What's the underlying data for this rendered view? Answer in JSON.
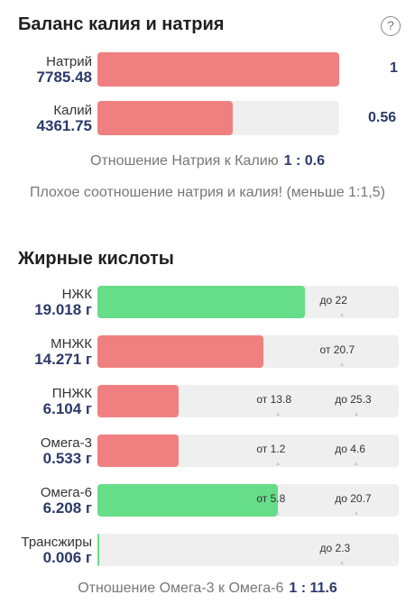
{
  "balance": {
    "title": "Баланс калия и натрия",
    "help_icon": "?",
    "sodium": {
      "label": "Натрий",
      "value": "7785.48",
      "ratio": "1",
      "fill_fraction": 1.0,
      "color": "#f08080"
    },
    "potassium": {
      "label": "Калий",
      "value": "4361.75",
      "ratio": "0.56",
      "fill_fraction": 0.56,
      "color": "#f08080"
    },
    "ratio_text": "Отношение Натрия к Калию",
    "ratio_value": "1 : 0.6",
    "warning": "Плохое соотношение натрия и калия! (меньше 1:1,5)"
  },
  "fatty_acids": {
    "title": "Жирные кислоты",
    "rows": [
      {
        "label": "НЖК",
        "value": "19.018 г",
        "fill_fraction": 0.69,
        "color": "#66dd88",
        "marks": [
          {
            "text": "до 22",
            "pos": 0.81
          }
        ]
      },
      {
        "label": "МНЖК",
        "value": "14.271 г",
        "fill_fraction": 0.55,
        "color": "#f08080",
        "marks": [
          {
            "text": "от 20.7",
            "pos": 0.81
          }
        ]
      },
      {
        "label": "ПНЖК",
        "value": "6.104 г",
        "fill_fraction": 0.27,
        "color": "#f08080",
        "marks": [
          {
            "text": "от 13.8",
            "pos": 0.6
          },
          {
            "text": "до 25.3",
            "pos": 0.86
          }
        ]
      },
      {
        "label": "Омега-3",
        "value": "0.533 г",
        "fill_fraction": 0.27,
        "color": "#f08080",
        "marks": [
          {
            "text": "от 1.2",
            "pos": 0.6
          },
          {
            "text": "до 4.6",
            "pos": 0.86
          }
        ]
      },
      {
        "label": "Омега-6",
        "value": "6.208 г",
        "fill_fraction": 0.6,
        "color": "#66dd88",
        "marks": [
          {
            "text": "от 5.8",
            "pos": 0.6
          },
          {
            "text": "до 20.7",
            "pos": 0.86
          }
        ]
      },
      {
        "label": "Трансжиры",
        "value": "0.006 г",
        "fill_fraction": 0.003,
        "color": "#66dd88",
        "marks": [
          {
            "text": "до 2.3",
            "pos": 0.81
          }
        ]
      }
    ],
    "ratio_text": "Отношение Омега-3 к Омега-6",
    "ratio_value": "1 : 11.6"
  }
}
